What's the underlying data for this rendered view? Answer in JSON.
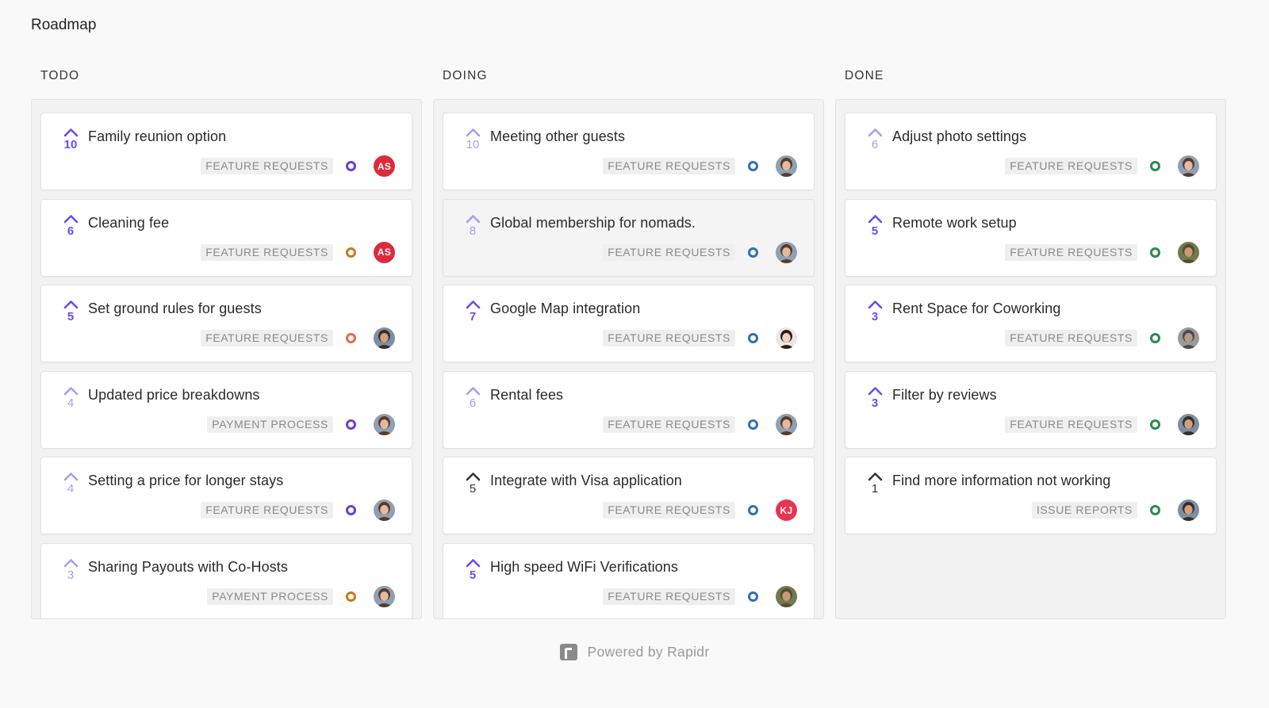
{
  "page": {
    "title": "Roadmap"
  },
  "colors": {
    "vote_active": "#6a4cf0",
    "vote_faded": "#a89cf2",
    "vote_dark": "#333333",
    "status_purple": "#6a3fd4",
    "status_orange": "#c9781f",
    "status_red": "#e66a4b",
    "status_blue": "#2f6fb8",
    "status_green": "#2b8a4e"
  },
  "columns": [
    {
      "title": "TODO",
      "cards": [
        {
          "title": "Family reunion option",
          "votes": "10",
          "vote_style": "active",
          "tag": "FEATURE REQUESTS",
          "status_color": "#6a3fd4",
          "avatar": {
            "type": "initials",
            "text": "AS",
            "color": "#e0293a"
          }
        },
        {
          "title": "Cleaning fee",
          "votes": "6",
          "vote_style": "active",
          "tag": "FEATURE REQUESTS",
          "status_color": "#c9781f",
          "avatar": {
            "type": "initials",
            "text": "AS",
            "color": "#e0293a"
          }
        },
        {
          "title": "Set ground rules for guests",
          "votes": "5",
          "vote_style": "active",
          "tag": "FEATURE REQUESTS",
          "status_color": "#e66a4b",
          "avatar": {
            "type": "photo",
            "skin": "#d2a07e",
            "hair": "#3a2d25",
            "bg": "#7b8fa6"
          }
        },
        {
          "title": "Updated price breakdowns",
          "votes": "4",
          "vote_style": "faded",
          "tag": "PAYMENT PROCESS",
          "status_color": "#6a3fd4",
          "avatar": {
            "type": "photo",
            "skin": "#e3b9a0",
            "hair": "#5a3a2a",
            "bg": "#8fa0b3"
          }
        },
        {
          "title": "Setting a price for longer stays",
          "votes": "4",
          "vote_style": "faded",
          "tag": "FEATURE REQUESTS",
          "status_color": "#6a3fd4",
          "avatar": {
            "type": "photo",
            "skin": "#e3b9a0",
            "hair": "#5a3a2a",
            "bg": "#8fa0b3"
          }
        },
        {
          "title": "Sharing Payouts with Co-Hosts",
          "votes": "3",
          "vote_style": "faded",
          "tag": "PAYMENT PROCESS",
          "status_color": "#c9781f",
          "avatar": {
            "type": "photo",
            "skin": "#e3b9a0",
            "hair": "#5a3a2a",
            "bg": "#8fa0b3"
          }
        }
      ]
    },
    {
      "title": "DOING",
      "cards": [
        {
          "title": "Meeting other guests",
          "votes": "10",
          "vote_style": "faded",
          "tag": "FEATURE REQUESTS",
          "status_color": "#2f6fb8",
          "avatar": {
            "type": "photo",
            "skin": "#e3b9a0",
            "hair": "#5a3a2a",
            "bg": "#8fa0b3"
          }
        },
        {
          "title": "Global membership for nomads.",
          "votes": "8",
          "vote_style": "faded",
          "tag": "FEATURE REQUESTS",
          "status_color": "#2f6fb8",
          "hovered": true,
          "avatar": {
            "type": "photo",
            "skin": "#e3b9a0",
            "hair": "#5a3a2a",
            "bg": "#8fa0b3"
          }
        },
        {
          "title": "Google Map integration",
          "votes": "7",
          "vote_style": "active",
          "tag": "FEATURE REQUESTS",
          "status_color": "#2f6fb8",
          "avatar": {
            "type": "photo",
            "skin": "#f0d2c0",
            "hair": "#2a1c16",
            "bg": "#efe6e0"
          }
        },
        {
          "title": "Rental fees",
          "votes": "6",
          "vote_style": "faded",
          "tag": "FEATURE REQUESTS",
          "status_color": "#2f6fb8",
          "avatar": {
            "type": "photo",
            "skin": "#e3b9a0",
            "hair": "#5a3a2a",
            "bg": "#8fa0b3"
          }
        },
        {
          "title": "Integrate with Visa application",
          "votes": "5",
          "vote_style": "dark",
          "tag": "FEATURE REQUESTS",
          "status_color": "#2f6fb8",
          "avatar": {
            "type": "initials",
            "text": "KJ",
            "color": "#e8344f"
          }
        },
        {
          "title": "High speed WiFi Verifications",
          "votes": "5",
          "vote_style": "active",
          "tag": "FEATURE REQUESTS",
          "status_color": "#2f6fb8",
          "avatar": {
            "type": "photo",
            "skin": "#c99a76",
            "hair": "#5b4a2e",
            "bg": "#6f7a4f"
          }
        }
      ]
    },
    {
      "title": "DONE",
      "cards": [
        {
          "title": "Adjust photo settings",
          "votes": "6",
          "vote_style": "faded",
          "tag": "FEATURE REQUESTS",
          "status_color": "#2b8a4e",
          "avatar": {
            "type": "photo",
            "skin": "#e3b9a0",
            "hair": "#5a3a2a",
            "bg": "#8fa0b3"
          }
        },
        {
          "title": "Remote work setup",
          "votes": "5",
          "vote_style": "active",
          "tag": "FEATURE REQUESTS",
          "status_color": "#2b8a4e",
          "avatar": {
            "type": "photo",
            "skin": "#c99a76",
            "hair": "#5b4a2e",
            "bg": "#6f7a4f"
          }
        },
        {
          "title": "Rent Space for Coworking",
          "votes": "3",
          "vote_style": "active",
          "tag": "FEATURE REQUESTS",
          "status_color": "#2b8a4e",
          "avatar": {
            "type": "photo",
            "skin": "#b89a86",
            "hair": "#4a4a4a",
            "bg": "#9a9a9a"
          }
        },
        {
          "title": "Filter by reviews",
          "votes": "3",
          "vote_style": "active",
          "tag": "FEATURE REQUESTS",
          "status_color": "#2b8a4e",
          "avatar": {
            "type": "photo",
            "skin": "#d2a07e",
            "hair": "#3a2d25",
            "bg": "#7b8fa6"
          }
        },
        {
          "title": "Find more information not working",
          "votes": "1",
          "vote_style": "dark",
          "tag": "ISSUE REPORTS",
          "status_color": "#2b8a4e",
          "avatar": {
            "type": "photo",
            "skin": "#d2a07e",
            "hair": "#3a2d25",
            "bg": "#7b8fa6"
          }
        }
      ]
    }
  ],
  "footer": {
    "text": "Powered by Rapidr",
    "logo_icon": "rapidr-logo-icon"
  }
}
